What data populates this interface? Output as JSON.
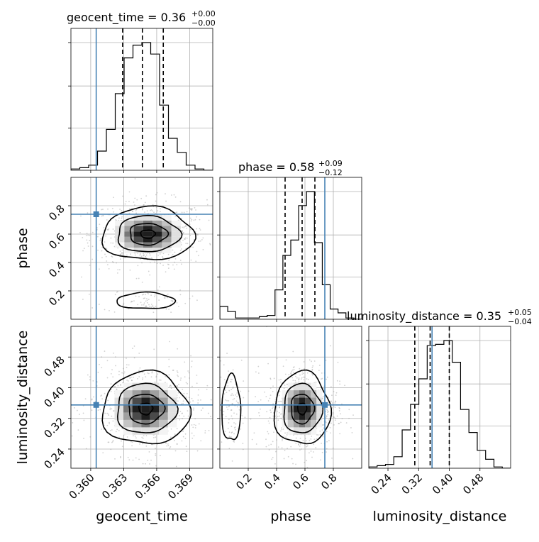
{
  "colors": {
    "truth": "#4682b4",
    "hist": "#000000",
    "grid": "#b0b0b0"
  },
  "titles": {
    "geocent_time": {
      "name": "geocent_time",
      "value": "0.36",
      "plus": "+0.00",
      "minus": "−0.00"
    },
    "phase": {
      "name": "phase",
      "value": "0.58",
      "plus": "+0.09",
      "minus": "−0.12"
    },
    "luminosity_distance": {
      "name": "luminosity_distance",
      "value": "0.35",
      "plus": "+0.05",
      "minus": "−0.04"
    }
  },
  "axis_labels": {
    "x0": "geocent_time",
    "x1": "phase",
    "x2": "luminosity_distance",
    "y1": "phase",
    "y2": "luminosity_distance"
  },
  "chart_data": {
    "type": "corner",
    "parameters": [
      "geocent_time",
      "phase",
      "luminosity_distance"
    ],
    "ranges": {
      "geocent_time": [
        0.3582,
        0.3711
      ],
      "phase": [
        0.0,
        1.0
      ],
      "luminosity_distance": [
        0.19,
        0.56
      ]
    },
    "ticks": {
      "geocent_time": {
        "values": [
          0.36,
          0.363,
          0.366,
          0.369
        ],
        "labels": [
          "0.360",
          "0.363",
          "0.366",
          "0.369"
        ]
      },
      "phase": {
        "values": [
          0.2,
          0.4,
          0.6,
          0.8
        ],
        "labels": [
          "0.2",
          "0.4",
          "0.6",
          "0.8"
        ]
      },
      "luminosity_distance": {
        "values": [
          0.24,
          0.32,
          0.4,
          0.48
        ],
        "labels": [
          "0.24",
          "0.32",
          "0.40",
          "0.48"
        ]
      }
    },
    "truths": {
      "geocent_time": 0.3605,
      "phase": 0.74,
      "luminosity_distance": 0.355
    },
    "quantiles": {
      "geocent_time": [
        0.3629,
        0.3647,
        0.3666
      ],
      "phase": [
        0.46,
        0.58,
        0.67
      ],
      "luminosity_distance": [
        0.31,
        0.35,
        0.4
      ]
    },
    "histograms": {
      "geocent_time": [
        0.01,
        0.02,
        0.04,
        0.15,
        0.32,
        0.6,
        0.88,
        0.98,
        1.0,
        0.91,
        0.51,
        0.25,
        0.14,
        0.04,
        0.01,
        0.0
      ],
      "phase": [
        0.1,
        0.06,
        0.01,
        0.01,
        0.01,
        0.02,
        0.03,
        0.23,
        0.5,
        0.62,
        0.89,
        1.0,
        0.6,
        0.27,
        0.08,
        0.05,
        0.01,
        0.0
      ],
      "luminosity_distance": [
        0.01,
        0.02,
        0.03,
        0.09,
        0.3,
        0.5,
        0.7,
        0.96,
        0.97,
        1.0,
        0.83,
        0.46,
        0.28,
        0.14,
        0.07,
        0.01,
        0.0
      ]
    },
    "hist2d": [
      {
        "x": "geocent_time",
        "y": "phase",
        "peaks": [
          {
            "x": 0.3652,
            "y": 0.6,
            "sx": 0.0019,
            "sy": 0.085,
            "w": 1.0
          },
          {
            "x": 0.365,
            "y": 0.13,
            "sx": 0.0014,
            "sy": 0.03,
            "w": 0.08
          }
        ]
      },
      {
        "x": "geocent_time",
        "y": "luminosity_distance",
        "peaks": [
          {
            "x": 0.365,
            "y": 0.345,
            "sx": 0.0018,
            "sy": 0.043,
            "w": 1.0
          }
        ]
      },
      {
        "x": "phase",
        "y": "luminosity_distance",
        "peaks": [
          {
            "x": 0.58,
            "y": 0.345,
            "sx": 0.09,
            "sy": 0.043,
            "w": 1.0
          },
          {
            "x": 0.08,
            "y": 0.345,
            "sx": 0.035,
            "sy": 0.045,
            "w": 0.12
          }
        ]
      }
    ],
    "grid": true
  }
}
